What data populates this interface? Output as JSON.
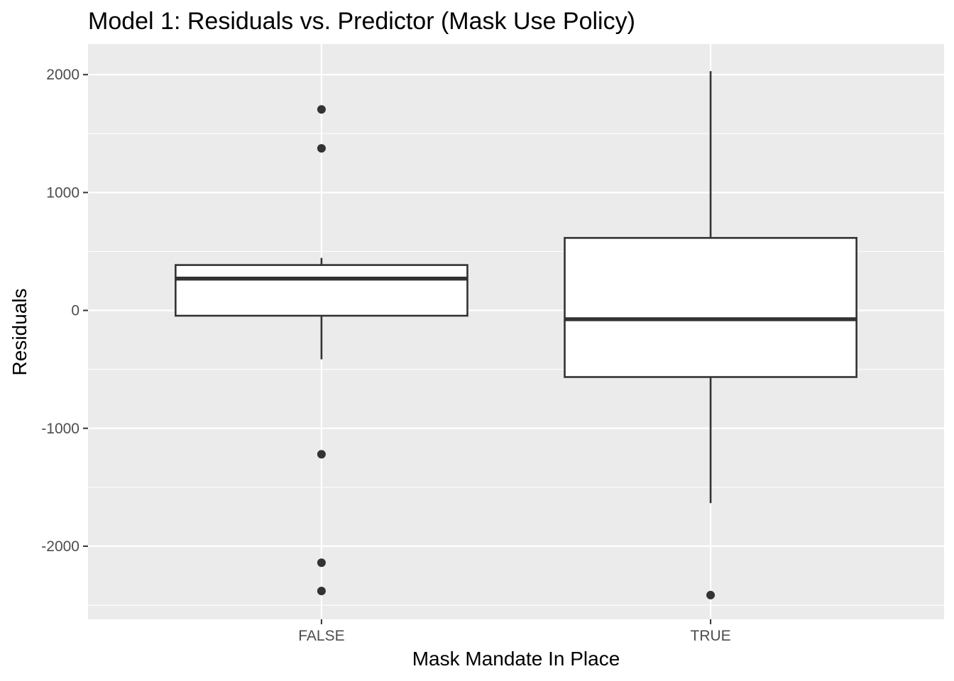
{
  "chart_data": {
    "type": "boxplot",
    "title": "Model 1: Residuals vs. Predictor (Mask Use Policy)",
    "xlabel": "Mask Mandate In Place",
    "ylabel": "Residuals",
    "categories": [
      "FALSE",
      "TRUE"
    ],
    "ylim": [
      -2620,
      2260
    ],
    "yticks": [
      {
        "value": 2000,
        "label": "2000"
      },
      {
        "value": 1000,
        "label": "1000"
      },
      {
        "value": 0,
        "label": "0"
      },
      {
        "value": -1000,
        "label": "-1000"
      },
      {
        "value": -2000,
        "label": "-2000"
      }
    ],
    "boxes": [
      {
        "category": "FALSE",
        "whisker_low": -415,
        "q1": -45,
        "median": 270,
        "q3": 385,
        "whisker_high": 445,
        "outliers": [
          1705,
          1375,
          -1220,
          -2140,
          -2380
        ]
      },
      {
        "category": "TRUE",
        "whisker_low": -1635,
        "q1": -565,
        "median": -75,
        "q3": 615,
        "whisker_high": 2030,
        "outliers": [
          -2415
        ]
      }
    ],
    "grid": true,
    "colors": {
      "panel": "#ebebeb",
      "grid": "#ffffff",
      "box_fill": "#ffffff",
      "box_stroke": "#333333"
    }
  }
}
